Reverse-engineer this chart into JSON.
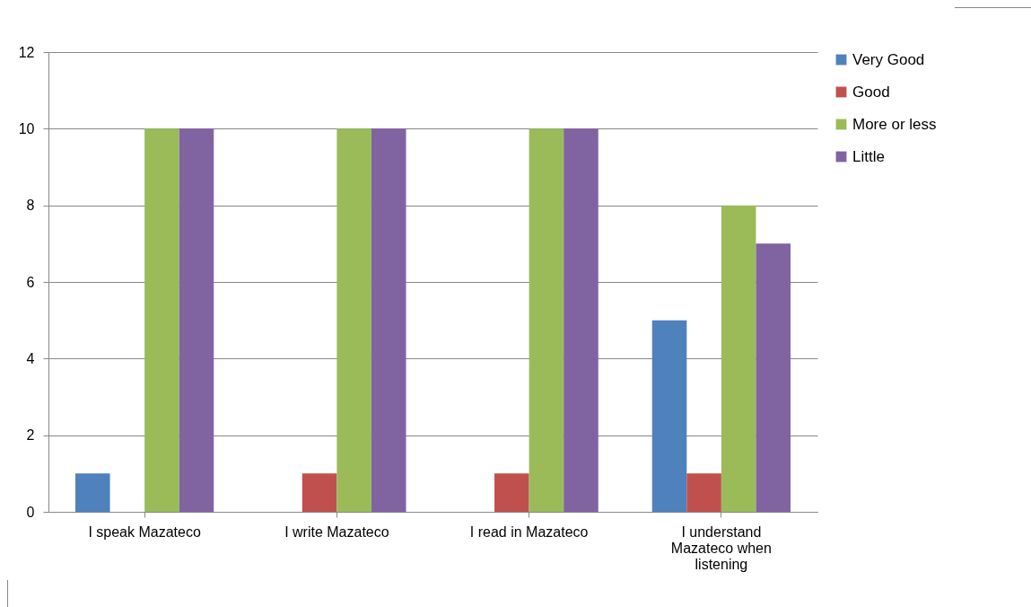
{
  "chart_data": {
    "type": "bar",
    "categories": [
      "I speak Mazateco",
      "I write Mazateco",
      "I read in Mazateco",
      "I understand Mazateco when listening"
    ],
    "series": [
      {
        "name": "Very Good",
        "color": "#4f81bd",
        "values": [
          1,
          0,
          0,
          5
        ]
      },
      {
        "name": "Good",
        "color": "#c0504d",
        "values": [
          0,
          1,
          1,
          1
        ]
      },
      {
        "name": "More or less",
        "color": "#9bbb59",
        "values": [
          10,
          10,
          10,
          8
        ]
      },
      {
        "name": "Little",
        "color": "#8064a2",
        "values": [
          10,
          10,
          10,
          7
        ]
      }
    ],
    "ylim": [
      0,
      12
    ],
    "yticks": [
      0,
      2,
      4,
      6,
      8,
      10,
      12
    ],
    "grid": "y",
    "legend": "right"
  }
}
